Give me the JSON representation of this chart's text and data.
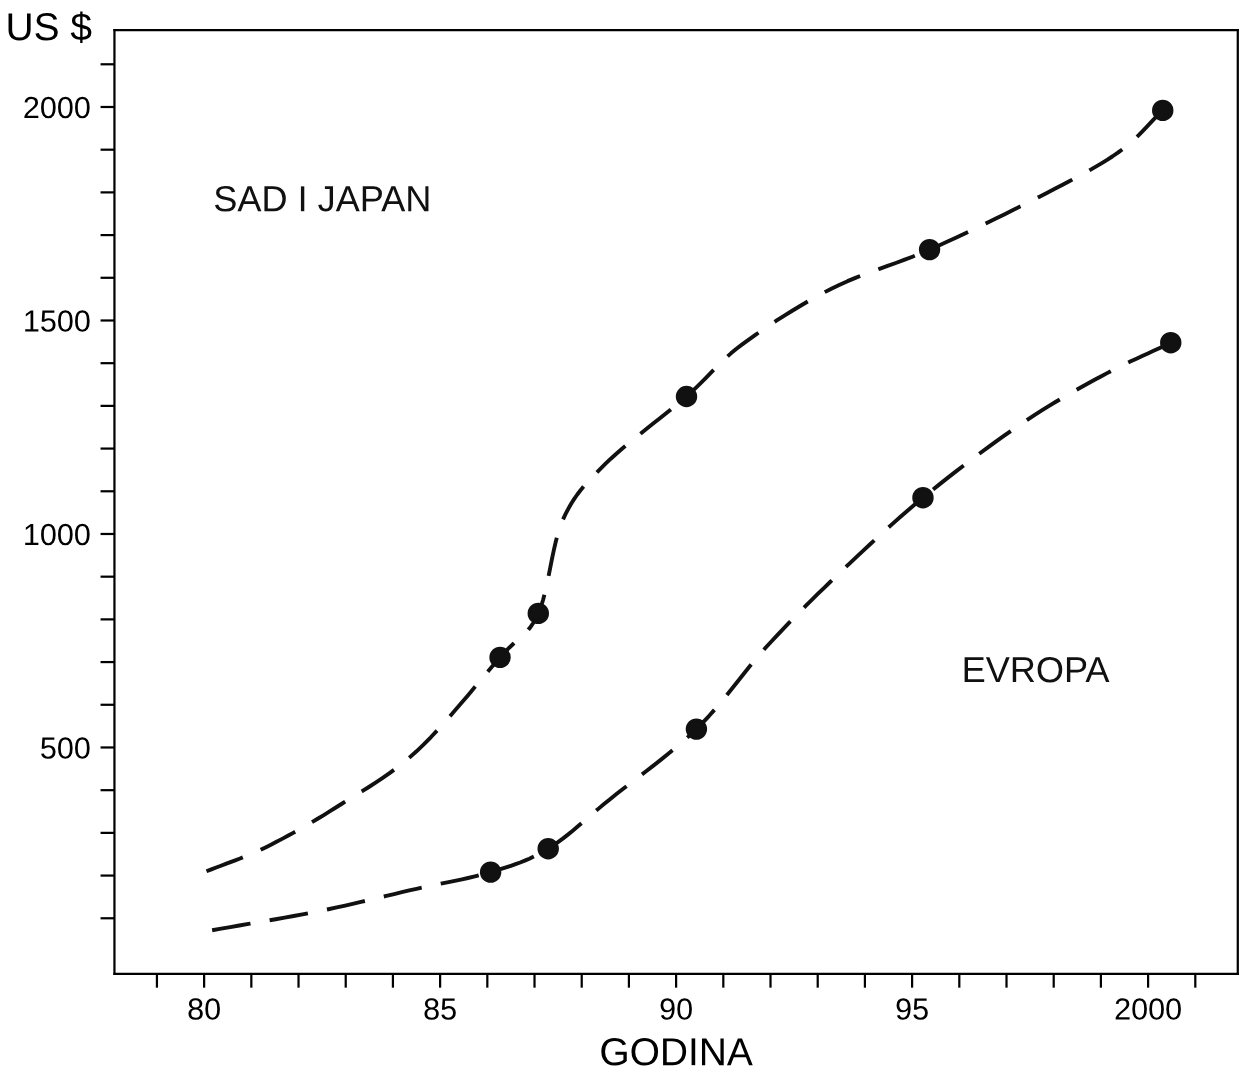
{
  "chart_data": {
    "type": "line",
    "xlabel": "GODINA",
    "ylabel": "US $",
    "annotations": [
      "SAD I JAPAN",
      "EVROPA"
    ],
    "series": [
      {
        "color": "#111111",
        "line_style": "dashed",
        "marker": "none",
        "x": [
          1980.05,
          1981.3,
          1982.8,
          1984.5,
          1986.27,
          1987.08,
          1987.6,
          1988.5,
          1990.22,
          1991.4,
          1993.3,
          1995.37,
          1997.7,
          1999.36,
          2000.31
        ],
        "values": [
          210,
          266,
          360,
          491,
          711,
          814,
          1033,
          1164,
          1322,
          1444,
          1575,
          1666,
          1790,
          1893,
          1992
        ]
      },
      {
        "color": "#111111",
        "line_style": "dashed",
        "marker": "none",
        "x": [
          1980.17,
          1982.45,
          1984.5,
          1986.07,
          1987.29,
          1988.6,
          1990.43,
          1991.9,
          1993.4,
          1995.23,
          1997.3,
          1999.0,
          2000.48
        ],
        "values": [
          72,
          117,
          169,
          208,
          263,
          379,
          543,
          734,
          902,
          1085,
          1257,
          1369,
          1448
        ]
      },
      {
        "type": "scatter",
        "color": "#111111",
        "marker": "circle",
        "x": [
          1986.27,
          1987.08,
          1990.22,
          1995.37,
          2000.31
        ],
        "values": [
          711,
          814,
          1322,
          1666,
          1992
        ]
      },
      {
        "type": "scatter",
        "color": "#111111",
        "marker": "circle",
        "x": [
          1986.07,
          1987.29,
          1990.43,
          1995.23,
          2000.48
        ],
        "values": [
          208,
          263,
          543,
          1085,
          1448
        ]
      }
    ],
    "xlim": [
      1978.1,
      2001.9
    ],
    "xticks": [
      {
        "value": 1979,
        "label": null
      },
      {
        "value": 1980,
        "label": "80"
      },
      {
        "value": 1981,
        "label": null
      },
      {
        "value": 1982,
        "label": null
      },
      {
        "value": 1983,
        "label": null
      },
      {
        "value": 1984,
        "label": null
      },
      {
        "value": 1985,
        "label": "85"
      },
      {
        "value": 1986,
        "label": null
      },
      {
        "value": 1987,
        "label": null
      },
      {
        "value": 1988,
        "label": null
      },
      {
        "value": 1989,
        "label": null
      },
      {
        "value": 1990,
        "label": "90"
      },
      {
        "value": 1991,
        "label": null
      },
      {
        "value": 1992,
        "label": null
      },
      {
        "value": 1993,
        "label": null
      },
      {
        "value": 1994,
        "label": null
      },
      {
        "value": 1995,
        "label": "95"
      },
      {
        "value": 1996,
        "label": null
      },
      {
        "value": 1997,
        "label": null
      },
      {
        "value": 1998,
        "label": null
      },
      {
        "value": 1999,
        "label": null
      },
      2000,
      {
        "value": 2001,
        "label": null
      }
    ],
    "ylim": [
      -30,
      2180
    ],
    "yticks": [
      {
        "value": 100,
        "label": null
      },
      {
        "value": 200,
        "label": null
      },
      {
        "value": 300,
        "label": null
      },
      {
        "value": 400,
        "label": null
      },
      500,
      {
        "value": 600,
        "label": null
      },
      {
        "value": 700,
        "label": null
      },
      {
        "value": 800,
        "label": null
      },
      {
        "value": 900,
        "label": null
      },
      1000,
      {
        "value": 1100,
        "label": null
      },
      {
        "value": 1200,
        "label": null
      },
      {
        "value": 1300,
        "label": null
      },
      {
        "value": 1400,
        "label": null
      },
      1500,
      {
        "value": 1600,
        "label": null
      },
      {
        "value": 1700,
        "label": null
      },
      {
        "value": 1800,
        "label": null
      },
      {
        "value": 1900,
        "label": null
      },
      2000,
      {
        "value": 2100,
        "label": null
      }
    ],
    "grid": false,
    "legend": false
  }
}
